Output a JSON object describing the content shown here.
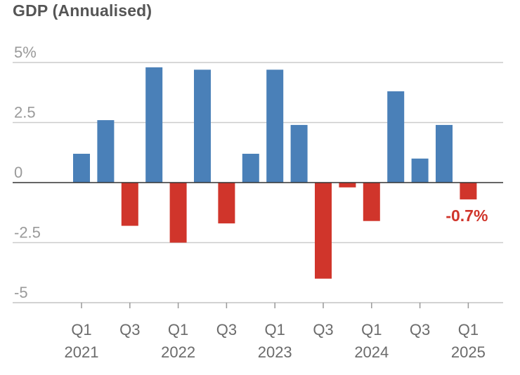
{
  "title": "GDP (Annualised)",
  "chart_data": {
    "type": "bar",
    "title": "GDP (Annualised)",
    "xlabel": "",
    "ylabel": "",
    "ylim": [
      -5,
      5
    ],
    "yticks": [
      5,
      2.5,
      0,
      -2.5,
      -5
    ],
    "ytick_labels": [
      "5%",
      "2.5",
      "0",
      "-2.5",
      "-5"
    ],
    "categories": [
      "Q1 2021",
      "Q2 2021",
      "Q3 2021",
      "Q4 2021",
      "Q1 2022",
      "Q2 2022",
      "Q3 2022",
      "Q4 2022",
      "Q1 2023",
      "Q2 2023",
      "Q3 2023",
      "Q4 2023",
      "Q1 2024",
      "Q2 2024",
      "Q3 2024",
      "Q4 2024",
      "Q1 2025"
    ],
    "values": [
      1.2,
      2.6,
      -1.8,
      4.8,
      -2.5,
      4.7,
      -1.7,
      1.2,
      4.7,
      2.4,
      -4.0,
      -0.2,
      -1.6,
      3.8,
      1.0,
      2.4,
      -0.7
    ],
    "xtick_labels": [
      {
        "index": 0,
        "line1": "Q1",
        "line2": "2021"
      },
      {
        "index": 2,
        "line1": "Q3",
        "line2": ""
      },
      {
        "index": 4,
        "line1": "Q1",
        "line2": "2022"
      },
      {
        "index": 6,
        "line1": "Q3",
        "line2": ""
      },
      {
        "index": 8,
        "line1": "Q1",
        "line2": "2023"
      },
      {
        "index": 10,
        "line1": "Q3",
        "line2": ""
      },
      {
        "index": 12,
        "line1": "Q1",
        "line2": "2024"
      },
      {
        "index": 14,
        "line1": "Q3",
        "line2": ""
      },
      {
        "index": 16,
        "line1": "Q1",
        "line2": "2025"
      }
    ],
    "annotation": {
      "index": 16,
      "text": "-0.7%"
    },
    "colors": {
      "positive": "#4a80b8",
      "negative": "#d0352b",
      "grid": "#cccccc",
      "zero": "#333333"
    },
    "grid": true
  }
}
